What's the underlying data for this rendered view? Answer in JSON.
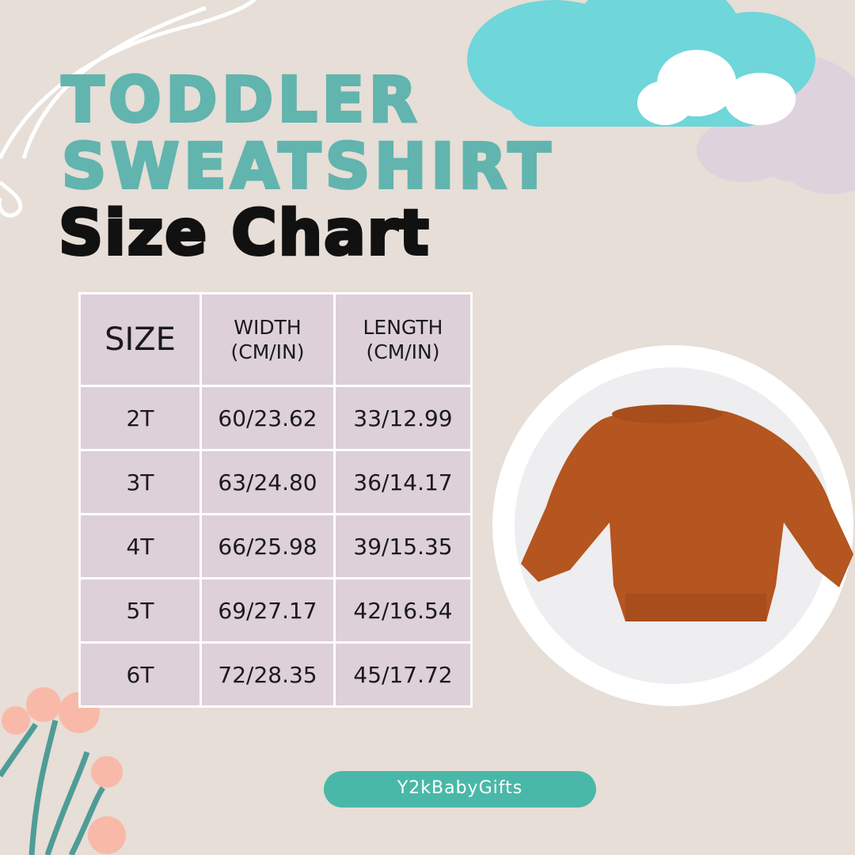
{
  "title": {
    "line1": "TODDLER",
    "line2": "SWEATSHIRT",
    "line3": "Size Chart"
  },
  "table": {
    "headers": {
      "size": "SIZE",
      "width": [
        "WIDTH",
        "(CM/IN)"
      ],
      "length": [
        "LENGTH",
        "(CM/IN)"
      ]
    },
    "rows": [
      {
        "size": "2T",
        "width": "60/23.62",
        "length": "33/12.99"
      },
      {
        "size": "3T",
        "width": "63/24.80",
        "length": "36/14.17"
      },
      {
        "size": "4T",
        "width": "66/25.98",
        "length": "39/15.35"
      },
      {
        "size": "5T",
        "width": "69/27.17",
        "length": "42/16.54"
      },
      {
        "size": "6T",
        "width": "72/28.35",
        "length": "45/17.72"
      }
    ]
  },
  "brand": "Y2kBabyGifts",
  "colors": {
    "background": "#e6ded7",
    "title_teal": "#62b4ae",
    "cell": "#ddd0d8",
    "badge": "#4ab8a8",
    "sweatshirt": "#b5551f",
    "cloud_teal": "#6fd6da",
    "cloud_lilac": "#ded3dc"
  }
}
